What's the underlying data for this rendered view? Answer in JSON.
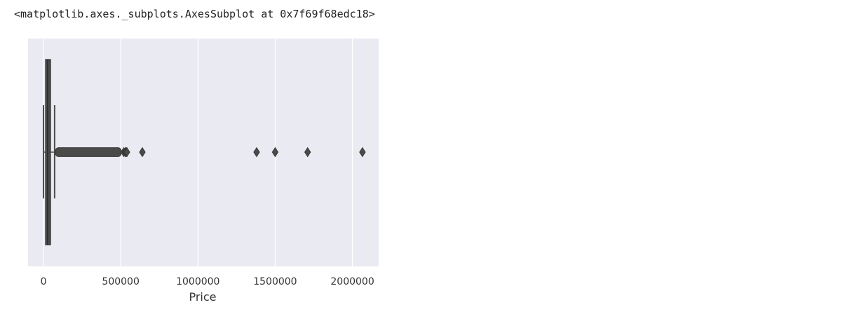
{
  "output": {
    "repr_text": "<matplotlib.axes._subplots.AxesSubplot at 0x7f69f68edc18>"
  },
  "chart_data": {
    "type": "boxplot",
    "orientation": "horizontal",
    "title": "",
    "xlabel": "Price",
    "ylabel": "",
    "xlim": [
      -100000,
      2170000
    ],
    "xticks": [
      0,
      500000,
      1000000,
      1500000,
      2000000
    ],
    "xtick_labels": [
      "0",
      "500000",
      "1000000",
      "1500000",
      "2000000"
    ],
    "grid": "vertical",
    "background": "#EAEAF2",
    "box_color": "#4C4C4C",
    "box_fill": "#4A4A4A",
    "box": {
      "whisker_low": 0,
      "q1": 14000,
      "median": 26000,
      "q3": 45000,
      "whisker_high": 72000
    },
    "dense_outlier_range": [
      75000,
      505000
    ],
    "outliers": [
      520000,
      530000,
      535000,
      540000,
      640000,
      1380000,
      1500000,
      1710000,
      2065000
    ]
  }
}
